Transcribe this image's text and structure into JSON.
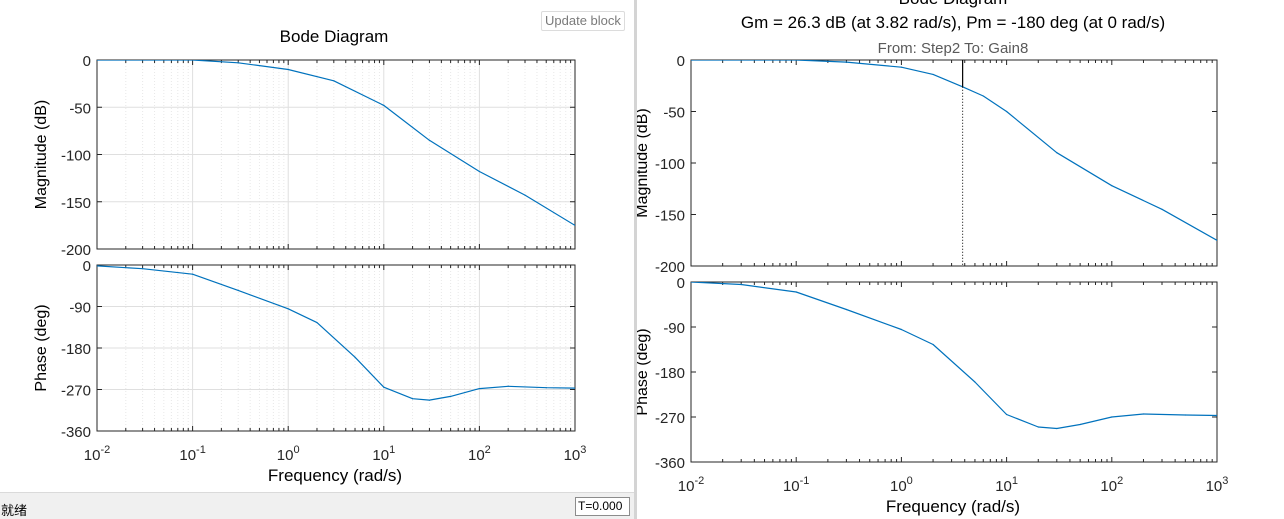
{
  "left_window": {
    "update_button_label": "Update block",
    "status_text": "就绪",
    "sim_time": "T=0.000"
  },
  "colors": {
    "series": "#0072bd",
    "grid": "#dfdfdf",
    "minor_grid": "#e8e8e8",
    "axis": "#262626",
    "subtitle": "#5a5a5a"
  },
  "chart_data": [
    {
      "type": "line",
      "title": "Bode Diagram",
      "subtitle": "",
      "xlabel": "Frequency  (rad/s)",
      "x_scale": "log",
      "xlim": [
        0.01,
        1000
      ],
      "x_ticks": [
        {
          "value": 0.01,
          "base": "10",
          "exp": "-2"
        },
        {
          "value": 0.1,
          "base": "10",
          "exp": "-1"
        },
        {
          "value": 1,
          "base": "10",
          "exp": "0"
        },
        {
          "value": 10,
          "base": "10",
          "exp": "1"
        },
        {
          "value": 100,
          "base": "10",
          "exp": "2"
        },
        {
          "value": 1000,
          "base": "10",
          "exp": "3"
        }
      ],
      "grid": true,
      "minor_grid": true,
      "panels": [
        {
          "ylabel": "Magnitude (dB)",
          "ylim": [
            -200,
            0
          ],
          "y_ticks": [
            0,
            -50,
            -100,
            -150,
            -200
          ],
          "series": [
            {
              "x": [
                0.01,
                0.03,
                0.1,
                0.3,
                1,
                3,
                10,
                30,
                100,
                300,
                1000
              ],
              "y": [
                0,
                0,
                0,
                -3,
                -10,
                -22,
                -48,
                -85,
                -118,
                -143,
                -175
              ]
            }
          ]
        },
        {
          "ylabel": "Phase (deg)",
          "ylim": [
            -360,
            0
          ],
          "y_ticks": [
            0,
            -90,
            -180,
            -270,
            -360
          ],
          "series": [
            {
              "x": [
                0.01,
                0.03,
                0.1,
                0.3,
                1,
                2,
                5,
                10,
                20,
                30,
                50,
                100,
                200,
                500,
                1000
              ],
              "y": [
                -2,
                -8,
                -20,
                -55,
                -95,
                -125,
                -200,
                -265,
                -290,
                -293,
                -285,
                -268,
                -263,
                -266,
                -267
              ]
            }
          ]
        }
      ]
    },
    {
      "type": "line",
      "title": "Bode Diagram",
      "subtitle": "Gm = 26.3 dB (at 3.82 rad/s),  Pm = -180 deg (at 0 rad/s)",
      "io_label": "From: Step2  To: Gain8",
      "xlabel": "Frequency  (rad/s)",
      "x_scale": "log",
      "xlim": [
        0.01,
        1000
      ],
      "x_ticks": [
        {
          "value": 0.01,
          "base": "10",
          "exp": "-2"
        },
        {
          "value": 0.1,
          "base": "10",
          "exp": "-1"
        },
        {
          "value": 1,
          "base": "10",
          "exp": "0"
        },
        {
          "value": 10,
          "base": "10",
          "exp": "1"
        },
        {
          "value": 100,
          "base": "10",
          "exp": "2"
        },
        {
          "value": 1000,
          "base": "10",
          "exp": "3"
        }
      ],
      "grid": false,
      "minor_grid": false,
      "margin_marker": {
        "frequency": 3.82,
        "gain_margin_db": 26.3
      },
      "panels": [
        {
          "ylabel": "Magnitude (dB)",
          "ylim": [
            -200,
            0
          ],
          "y_ticks": [
            0,
            -50,
            -100,
            -150,
            -200
          ],
          "series": [
            {
              "x": [
                0.01,
                0.03,
                0.1,
                0.3,
                1,
                2,
                3.82,
                6,
                10,
                30,
                100,
                300,
                1000
              ],
              "y": [
                0,
                0,
                0,
                -2,
                -7,
                -14,
                -26,
                -35,
                -50,
                -90,
                -122,
                -145,
                -175
              ]
            }
          ]
        },
        {
          "ylabel": "Phase (deg)",
          "ylim": [
            -360,
            0
          ],
          "y_ticks": [
            0,
            -90,
            -180,
            -270,
            -360
          ],
          "series": [
            {
              "x": [
                0.01,
                0.03,
                0.1,
                0.3,
                1,
                2,
                5,
                10,
                20,
                30,
                50,
                100,
                200,
                500,
                1000
              ],
              "y": [
                0,
                -5,
                -20,
                -55,
                -95,
                -125,
                -200,
                -265,
                -290,
                -293,
                -285,
                -270,
                -264,
                -266,
                -267
              ]
            }
          ]
        }
      ]
    }
  ]
}
